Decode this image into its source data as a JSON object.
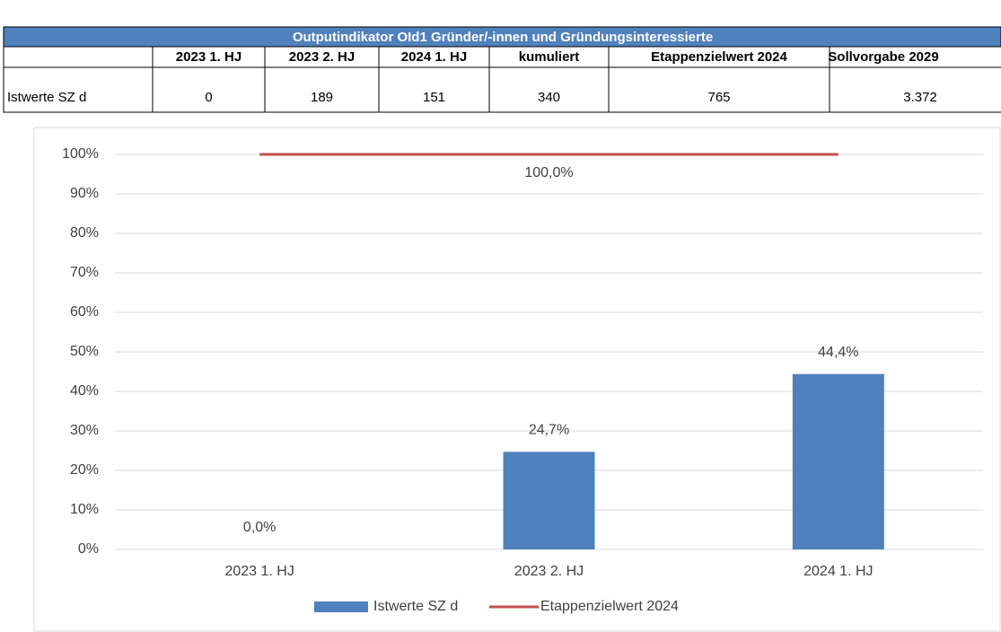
{
  "table": {
    "title": "Outputindikator OId1 Gründer/-innen und Gründungsinteressierte",
    "header": [
      "2023 1. HJ",
      "2023 2. HJ",
      "2024 1. HJ",
      "kumuliert",
      "Etappenzielwert 2024",
      "Sollvorgabe 2029"
    ],
    "rows": [
      [
        "Istwerte SZ d",
        "0",
        "189",
        "151",
        "340",
        "765",
        "3.372"
      ]
    ]
  },
  "chart_data": {
    "type": "bar",
    "categories": [
      "2023 1. HJ",
      "2023 2. HJ",
      "2024 1. HJ"
    ],
    "series": [
      {
        "name": "Istwerte SZ d",
        "type": "bar",
        "color": "#4f81bd",
        "values": [
          0,
          24.7,
          44.4
        ],
        "value_labels": [
          "0,0%",
          "24,7%",
          "44,4%"
        ]
      },
      {
        "name": "Etappenzielwert 2024",
        "type": "line",
        "color": "#c0504d",
        "values": [
          100,
          100,
          100
        ],
        "value_labels": [
          null,
          "100,0%",
          null
        ]
      }
    ],
    "ylim": [
      0,
      100
    ],
    "yticks": [
      {
        "value": 0,
        "label": "0%"
      },
      {
        "value": 10,
        "label": "10%"
      },
      {
        "value": 20,
        "label": "20%"
      },
      {
        "value": 30,
        "label": "30%"
      },
      {
        "value": 40,
        "label": "40%"
      },
      {
        "value": 50,
        "label": "50%"
      },
      {
        "value": 60,
        "label": "60%"
      },
      {
        "value": 70,
        "label": "70%"
      },
      {
        "value": 80,
        "label": "80%"
      },
      {
        "value": 90,
        "label": "90%"
      },
      {
        "value": 100,
        "label": "100%"
      }
    ],
    "grid": true,
    "legend": "bottom"
  }
}
